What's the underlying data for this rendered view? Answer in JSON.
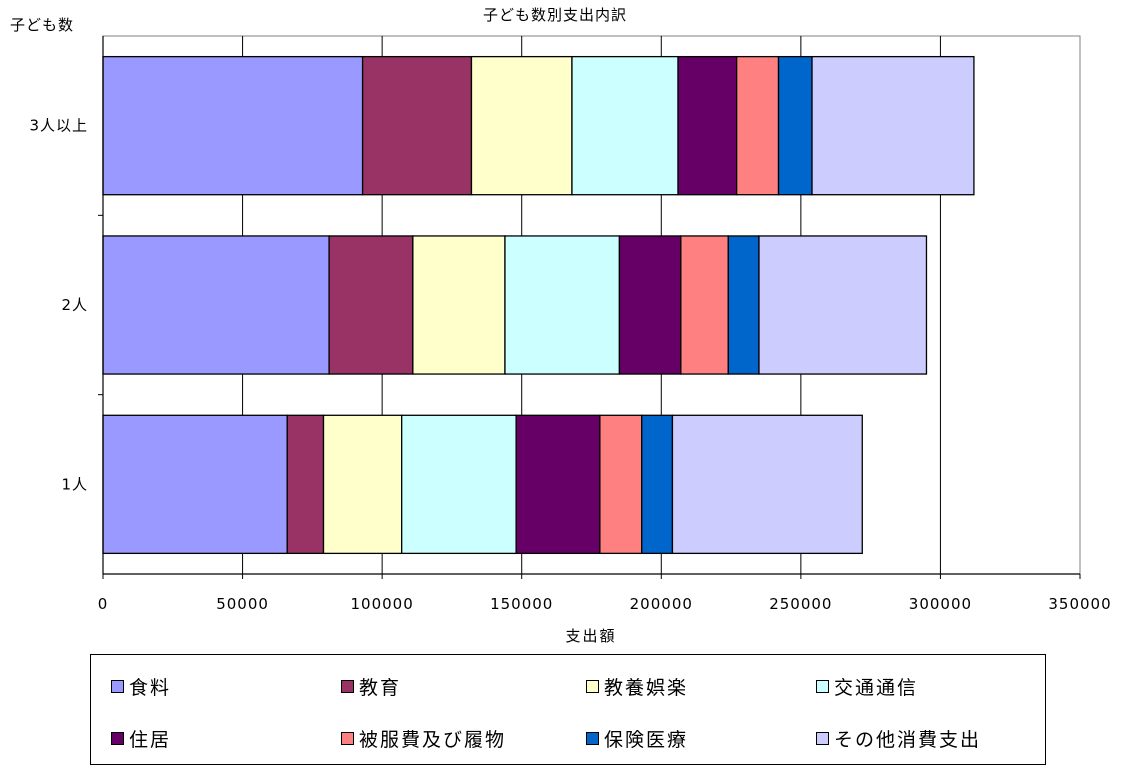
{
  "chart_data": {
    "type": "bar",
    "orientation": "horizontal",
    "stacked": true,
    "title": "子ども数別支出内訳",
    "ylabel": "子ども数",
    "xlabel": "支出額",
    "xlim": [
      0,
      350000
    ],
    "x_ticks": [
      "0",
      "50000",
      "100000",
      "150000",
      "200000",
      "250000",
      "300000",
      "350000"
    ],
    "categories": [
      "1人",
      "2人",
      "3人以上"
    ],
    "grid": "vertical",
    "legend_position": "bottom",
    "series": [
      {
        "name": "食料",
        "color": "#9999ff",
        "values": [
          66000,
          81000,
          93000
        ]
      },
      {
        "name": "教育",
        "color": "#993366",
        "values": [
          13000,
          30000,
          39000
        ]
      },
      {
        "name": "教養娯楽",
        "color": "#ffffcc",
        "values": [
          28000,
          33000,
          36000
        ]
      },
      {
        "name": "交通通信",
        "color": "#ccffff",
        "values": [
          41000,
          41000,
          38000
        ]
      },
      {
        "name": "住居",
        "color": "#660066",
        "values": [
          30000,
          22000,
          21000
        ]
      },
      {
        "name": "被服費及び履物",
        "color": "#ff8080",
        "values": [
          15000,
          17000,
          15000
        ]
      },
      {
        "name": "保険医療",
        "color": "#0066cc",
        "values": [
          11000,
          11000,
          12000
        ]
      },
      {
        "name": "その他消費支出",
        "color": "#ccccff",
        "values": [
          68000,
          60000,
          58000
        ]
      }
    ]
  }
}
